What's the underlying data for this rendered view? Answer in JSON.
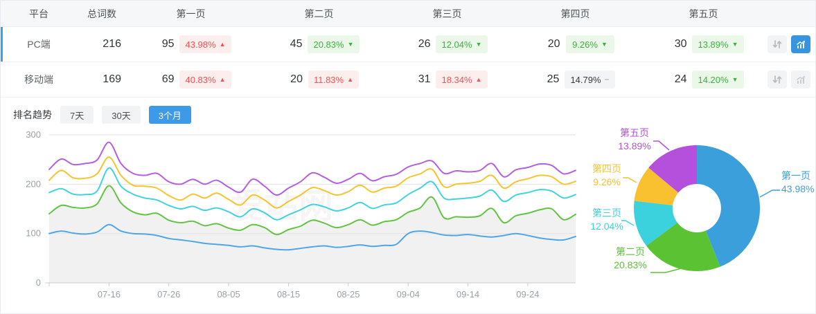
{
  "table": {
    "columns": [
      "平台",
      "总词数",
      "第一页",
      "第二页",
      "第三页",
      "第四页",
      "第五页"
    ],
    "rows": [
      {
        "platform": "PC端",
        "total": "216",
        "selected": true,
        "chart_active": true,
        "pages": [
          {
            "count": "95",
            "pct": "43.98%",
            "arrow": "▲",
            "tone": "red"
          },
          {
            "count": "45",
            "pct": "20.83%",
            "arrow": "▼",
            "tone": "green"
          },
          {
            "count": "26",
            "pct": "12.04%",
            "arrow": "▼",
            "tone": "green"
          },
          {
            "count": "20",
            "pct": "9.26%",
            "arrow": "▼",
            "tone": "green"
          },
          {
            "count": "30",
            "pct": "13.89%",
            "arrow": "▼",
            "tone": "green"
          }
        ]
      },
      {
        "platform": "移动端",
        "total": "169",
        "selected": false,
        "chart_active": false,
        "pages": [
          {
            "count": "69",
            "pct": "40.83%",
            "arrow": "▲",
            "tone": "red"
          },
          {
            "count": "20",
            "pct": "11.83%",
            "arrow": "▲",
            "tone": "red"
          },
          {
            "count": "31",
            "pct": "18.34%",
            "arrow": "▲",
            "tone": "red"
          },
          {
            "count": "25",
            "pct": "14.79%",
            "arrow": "−",
            "tone": "gray"
          },
          {
            "count": "24",
            "pct": "14.20%",
            "arrow": "▼",
            "tone": "green"
          }
        ]
      }
    ]
  },
  "trend": {
    "title": "排名趋势",
    "tabs": [
      {
        "label": "7天",
        "active": false
      },
      {
        "label": "30天",
        "active": false
      },
      {
        "label": "3个月",
        "active": true
      }
    ]
  },
  "watermark": "爱站网",
  "colors": {
    "accent_blue": "#3d9ae8",
    "page1": "#3A9FDB",
    "page2": "#5BC234",
    "page3": "#3BD2DE",
    "page4": "#F9C12F",
    "page5": "#B450DC"
  },
  "chart_data": [
    {
      "type": "line",
      "title": "排名趋势（3个月）",
      "xlabel": "",
      "ylabel": "",
      "ylim": [
        0,
        300
      ],
      "y_ticks": [
        0,
        100,
        200,
        300
      ],
      "grid": true,
      "legend_position": "none",
      "x_tick_labels": [
        "07-16",
        "07-26",
        "08-05",
        "08-15",
        "08-25",
        "09-04",
        "09-14",
        "09-24"
      ],
      "x_tick_indices": [
        5,
        10,
        15,
        20,
        25,
        30,
        35,
        40
      ],
      "x_start_date": "07-06",
      "x_step_days": 2,
      "series": [
        {
          "name": "第一页",
          "color": "#4DA6E8",
          "area": false,
          "values": [
            100,
            105,
            101,
            99,
            103,
            118,
            105,
            100,
            99,
            96,
            90,
            87,
            84,
            80,
            78,
            76,
            73,
            75,
            71,
            68,
            67,
            70,
            73,
            75,
            72,
            74,
            77,
            74,
            76,
            78,
            100,
            105,
            102,
            97,
            96,
            98,
            95,
            93,
            96,
            100,
            96,
            91,
            88,
            87,
            94
          ]
        },
        {
          "name": "第二页",
          "color": "#62C443",
          "area": true,
          "area_color": "#f1f1f1",
          "values": [
            140,
            157,
            153,
            152,
            160,
            197,
            162,
            144,
            138,
            141,
            127,
            122,
            125,
            116,
            120,
            111,
            107,
            118,
            112,
            98,
            108,
            115,
            127,
            121,
            112,
            118,
            128,
            117,
            124,
            128,
            143,
            152,
            174,
            132,
            134,
            133,
            136,
            151,
            122,
            136,
            141,
            148,
            150,
            128,
            139
          ]
        },
        {
          "name": "第三页",
          "color": "#41D2E2",
          "area": false,
          "values": [
            183,
            191,
            180,
            179,
            186,
            233,
            196,
            180,
            172,
            168,
            157,
            150,
            155,
            147,
            152,
            144,
            134,
            150,
            142,
            128,
            138,
            148,
            159,
            154,
            146,
            152,
            163,
            151,
            158,
            162,
            179,
            192,
            205,
            172,
            170,
            172,
            176,
            188,
            165,
            178,
            183,
            189,
            186,
            172,
            179
          ]
        },
        {
          "name": "第四页",
          "color": "#F7C42E",
          "area": false,
          "values": [
            208,
            228,
            213,
            212,
            221,
            255,
            218,
            198,
            196,
            192,
            177,
            168,
            180,
            172,
            182,
            169,
            158,
            178,
            168,
            152,
            165,
            178,
            193,
            187,
            178,
            185,
            198,
            184,
            192,
            196,
            213,
            221,
            230,
            195,
            200,
            202,
            206,
            218,
            192,
            205,
            211,
            218,
            215,
            200,
            206
          ]
        },
        {
          "name": "第五页",
          "color": "#B45FDE",
          "area": false,
          "values": [
            230,
            251,
            240,
            242,
            249,
            285,
            242,
            222,
            218,
            222,
            205,
            200,
            210,
            200,
            208,
            194,
            184,
            210,
            196,
            178,
            192,
            205,
            223,
            214,
            202,
            210,
            222,
            207,
            215,
            220,
            235,
            242,
            247,
            222,
            227,
            225,
            228,
            242,
            215,
            229,
            234,
            241,
            238,
            221,
            228
          ]
        }
      ]
    },
    {
      "type": "pie",
      "donut": true,
      "labels": [
        "第一页",
        "第二页",
        "第三页",
        "第四页",
        "第五页"
      ],
      "values": [
        43.98,
        20.83,
        12.04,
        9.26,
        13.89
      ],
      "value_labels": [
        "43.98%",
        "20.83%",
        "12.04%",
        "9.26%",
        "13.89%"
      ],
      "colors": [
        "#3A9FDB",
        "#5BC234",
        "#3BD2DE",
        "#F9C12F",
        "#B450DC"
      ],
      "legend_position": "outside-labels"
    }
  ]
}
